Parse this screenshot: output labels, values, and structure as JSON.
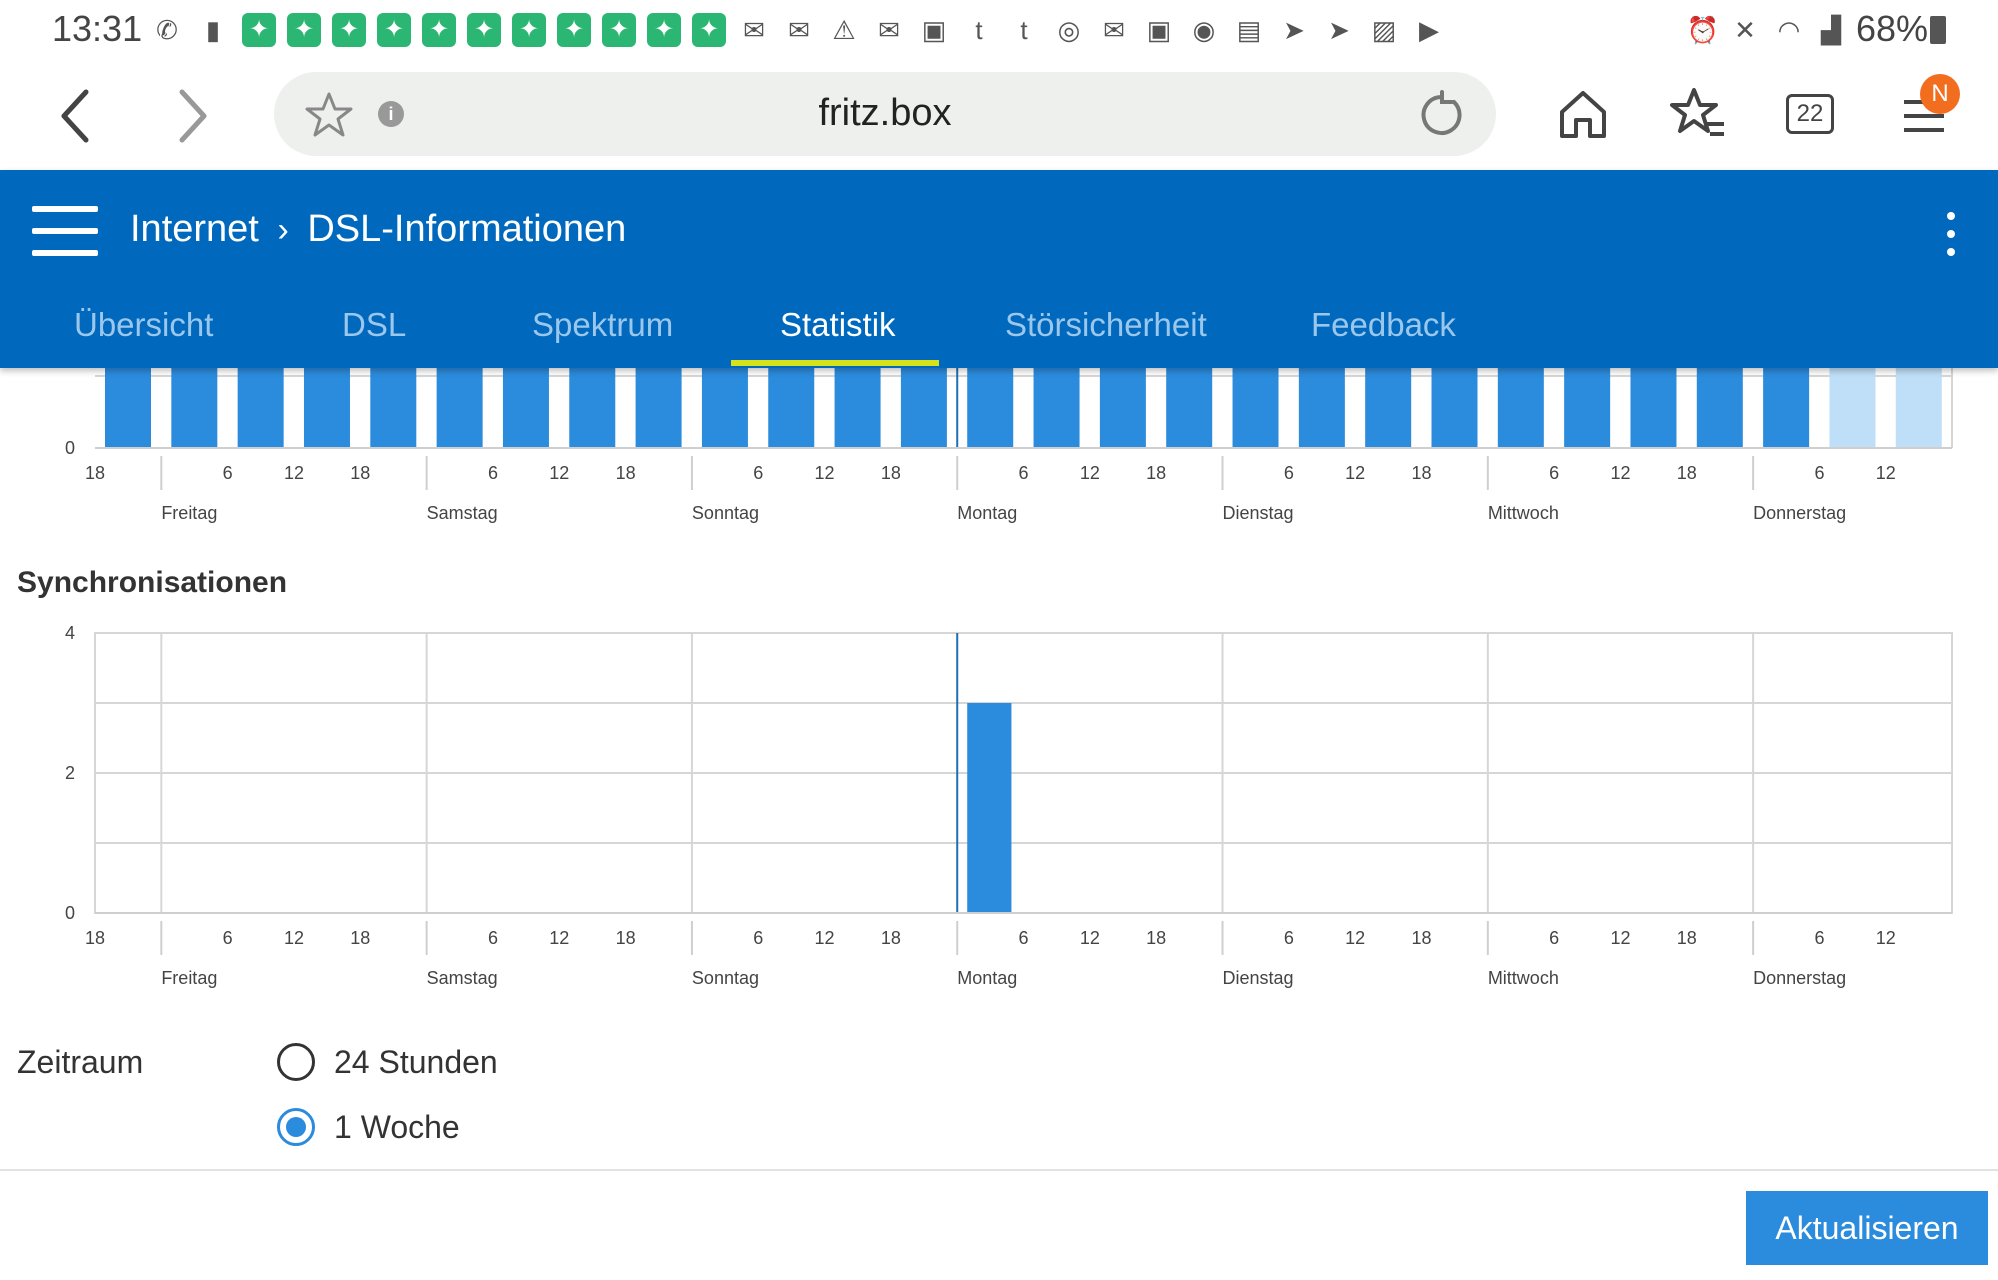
{
  "status_bar": {
    "time": "13:31",
    "battery": "68%"
  },
  "browser": {
    "url": "fritz.box",
    "tab_count": "22",
    "avatar_letter": "N"
  },
  "header": {
    "breadcrumb_root": "Internet",
    "breadcrumb_page": "DSL-Informationen",
    "tabs": [
      {
        "label": "Übersicht"
      },
      {
        "label": "DSL"
      },
      {
        "label": "Spektrum"
      },
      {
        "label": "Statistik"
      },
      {
        "label": "Störsicherheit"
      },
      {
        "label": "Feedback"
      }
    ],
    "active_tab": "Statistik"
  },
  "chart_data": [
    {
      "type": "bar",
      "title": "",
      "description_note": "",
      "y_tick_labels": [
        "0"
      ],
      "x_hour_ticks": [
        "18",
        "6",
        "12",
        "18",
        "6",
        "12",
        "18",
        "6",
        "12",
        "18",
        "6",
        "12",
        "18",
        "6",
        "12",
        "18",
        "6",
        "12",
        "18",
        "6",
        "12"
      ],
      "day_labels": [
        "Freitag",
        "Samstag",
        "Sonntag",
        "Montag",
        "Dienstag",
        "Mittwoch",
        "Donnerstag"
      ],
      "bar_color": "#2b8bdc",
      "current_bar_color": "#bfdef7"
    },
    {
      "type": "bar",
      "title": "Synchronisationen",
      "ylim": [
        0,
        4
      ],
      "y_tick_labels": [
        "0",
        "2",
        "4"
      ],
      "x_hour_ticks": [
        "18",
        "6",
        "12",
        "18",
        "6",
        "12",
        "18",
        "6",
        "12",
        "18",
        "6",
        "12",
        "18",
        "6",
        "12",
        "18",
        "6",
        "12",
        "18",
        "6",
        "12"
      ],
      "day_labels": [
        "Freitag",
        "Samstag",
        "Sonntag",
        "Montag",
        "Dienstag",
        "Mittwoch",
        "Donnerstag"
      ],
      "bars": [
        {
          "day": "Montag",
          "hour_start": 0,
          "hour_end": 4,
          "value": 3
        }
      ],
      "bar_color": "#2b8bdc",
      "grid": true
    }
  ],
  "zeitraum": {
    "label": "Zeitraum",
    "options": [
      {
        "label": "24 Stunden",
        "checked": false
      },
      {
        "label": "1 Woche",
        "checked": true
      }
    ]
  },
  "actions": {
    "refresh_label": "Aktualisieren"
  },
  "colors": {
    "header_blue": "#0069bd",
    "accent": "#2b8bdc",
    "tab_underline": "#d8e21b"
  }
}
